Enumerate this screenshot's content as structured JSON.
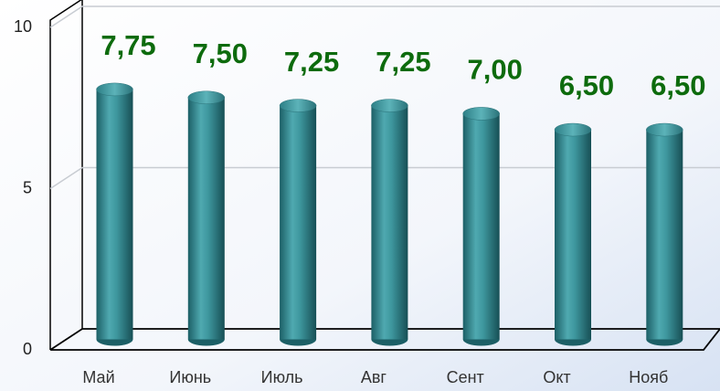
{
  "chart_data": {
    "type": "bar",
    "categories": [
      "Май",
      "Июнь",
      "Июль",
      "Авг",
      "Сент",
      "Окт",
      "Нояб"
    ],
    "values": [
      7.75,
      7.5,
      7.25,
      7.25,
      7.0,
      6.5,
      6.5
    ],
    "value_labels": [
      "7,75",
      "7,50",
      "7,25",
      "7,25",
      "7,00",
      "6,50",
      "6,50"
    ],
    "color": "#2f8a90",
    "ylim": [
      0,
      10
    ],
    "yticks": [
      0,
      5,
      10
    ],
    "grid": true
  }
}
